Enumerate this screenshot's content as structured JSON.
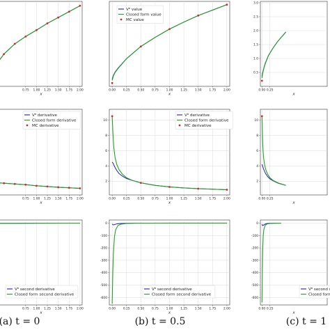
{
  "colors": {
    "nn": "#1f1fb4",
    "closed": "#22a022",
    "mc": "#d62728",
    "grid": "#d9d9d9"
  },
  "captions": [
    {
      "column": 0,
      "text": "(a) t = 0"
    },
    {
      "column": 1,
      "text": "(b) t = 0.5"
    },
    {
      "column": 2,
      "text": "(c) t = 1"
    }
  ],
  "chart_data": [
    {
      "id": "a-value",
      "type": "line",
      "column": 0,
      "row": 0,
      "xlim": [
        0.0,
        2.05
      ],
      "ylim": [
        0.8,
        3.7
      ],
      "xticks": [
        "0.75",
        "1.00",
        "1.25",
        "1.50",
        "1.75",
        "2.00"
      ],
      "yticks": [],
      "xlabel": "x",
      "x": [
        0.0,
        0.25,
        0.5,
        0.75,
        1.0,
        1.25,
        1.5,
        1.75,
        2.0
      ],
      "series": [
        {
          "kind": "nn",
          "values": [
            1.4,
            1.9,
            2.25,
            2.5,
            2.72,
            2.95,
            3.15,
            3.35,
            3.55
          ]
        },
        {
          "kind": "closed",
          "values": [
            1.4,
            1.9,
            2.25,
            2.5,
            2.72,
            2.95,
            3.15,
            3.35,
            3.55
          ]
        },
        {
          "kind": "mc",
          "values": [
            1.4,
            1.9,
            2.25,
            2.5,
            2.72,
            2.95,
            3.15,
            3.35,
            3.55
          ]
        }
      ],
      "legend": []
    },
    {
      "id": "b-value",
      "type": "line",
      "column": 1,
      "row": 0,
      "xlim": [
        -0.05,
        2.05
      ],
      "ylim": [
        -0.05,
        3.85
      ],
      "xticks": [
        "0.00",
        "0.25",
        "0.50",
        "0.75",
        "1.00",
        "1.25",
        "1.50",
        "1.75",
        "2.00"
      ],
      "yticks": [],
      "xlabel": "x",
      "x": [
        0.0,
        0.02,
        0.05,
        0.1,
        0.25,
        0.5,
        0.75,
        1.0,
        1.25,
        1.5,
        1.75,
        2.0
      ],
      "series": [
        {
          "kind": "nn",
          "values": [
            0.28,
            0.45,
            0.6,
            0.78,
            1.22,
            1.78,
            2.2,
            2.58,
            2.9,
            3.2,
            3.45,
            3.7
          ]
        },
        {
          "kind": "closed",
          "values": [
            0.22,
            0.42,
            0.58,
            0.76,
            1.22,
            1.78,
            2.2,
            2.58,
            2.9,
            3.2,
            3.45,
            3.7
          ]
        },
        {
          "kind": "mc",
          "x": [
            0.0,
            0.5,
            1.0,
            1.5,
            2.0
          ],
          "values": [
            0.1,
            1.78,
            2.58,
            3.2,
            3.7
          ]
        }
      ],
      "legend": [
        {
          "kind": "nn",
          "text": "Vᶿ value"
        },
        {
          "kind": "closed",
          "text": "Closed form value"
        },
        {
          "kind": "mc",
          "text": "MC value"
        }
      ]
    },
    {
      "id": "c-value",
      "type": "line",
      "column": 2,
      "row": 0,
      "xlim": [
        -0.05,
        2.05
      ],
      "ylim": [
        0.0,
        3.05
      ],
      "xticks": [
        "0.00",
        "0.25"
      ],
      "yticks": [
        "0.5",
        "1.0",
        "1.5",
        "2.0",
        "2.5",
        "3.0"
      ],
      "xlabel": "x",
      "x": [
        0.0,
        0.02,
        0.05,
        0.1,
        0.2,
        0.35,
        0.5,
        0.75
      ],
      "series": [
        {
          "kind": "nn",
          "values": [
            0.35,
            0.48,
            0.62,
            0.82,
            1.1,
            1.38,
            1.62,
            1.95
          ]
        },
        {
          "kind": "closed",
          "values": [
            0.3,
            0.45,
            0.6,
            0.8,
            1.1,
            1.38,
            1.62,
            1.95
          ]
        },
        {
          "kind": "mc",
          "x": [
            0.0
          ],
          "values": [
            0.2
          ]
        }
      ],
      "legend": []
    },
    {
      "id": "a-derivative",
      "type": "line",
      "column": 0,
      "row": 1,
      "xlim": [
        0.0,
        2.05
      ],
      "ylim": [
        -0.2,
        11.5
      ],
      "xticks": [
        "0.75",
        "1.00",
        "1.25",
        "1.50",
        "1.75",
        "2.00"
      ],
      "yticks": [],
      "xlabel": "x",
      "x": [
        0.0,
        0.25,
        0.5,
        0.75,
        1.0,
        1.25,
        1.5,
        1.75,
        2.0
      ],
      "series": [
        {
          "kind": "nn",
          "values": [
            1.5,
            1.4,
            1.3,
            1.2,
            1.05,
            0.95,
            0.85,
            0.78,
            0.7
          ]
        },
        {
          "kind": "closed",
          "values": [
            1.5,
            1.4,
            1.3,
            1.2,
            1.05,
            0.95,
            0.85,
            0.78,
            0.7
          ]
        },
        {
          "kind": "mc",
          "values": [
            1.5,
            1.4,
            1.3,
            1.2,
            1.05,
            0.95,
            0.85,
            0.78,
            0.7
          ]
        }
      ],
      "legend": [
        {
          "kind": "nn",
          "text": "Vᶿ derivative"
        },
        {
          "kind": "closed",
          "text": "Closed form derivative"
        },
        {
          "kind": "mc",
          "text": "MC derivative"
        }
      ]
    },
    {
      "id": "b-derivative",
      "type": "line",
      "column": 1,
      "row": 1,
      "xlim": [
        -0.05,
        2.05
      ],
      "ylim": [
        0.2,
        11.4
      ],
      "xticks": [
        "0.00",
        "0.25",
        "0.50",
        "0.75",
        "1.00",
        "1.25",
        "1.50",
        "1.75",
        "2.00"
      ],
      "yticks": [
        "2",
        "4",
        "6",
        "8",
        "10"
      ],
      "xlabel": "x",
      "x": [
        0.0,
        0.01,
        0.02,
        0.03,
        0.05,
        0.08,
        0.12,
        0.18,
        0.25,
        0.35,
        0.5,
        0.75,
        1.0,
        1.25,
        1.5,
        1.75,
        2.0
      ],
      "series": [
        {
          "kind": "nn",
          "values": [
            4.5,
            4.4,
            4.3,
            4.1,
            3.8,
            3.4,
            3.0,
            2.65,
            2.35,
            2.1,
            1.78,
            1.45,
            1.25,
            1.12,
            1.02,
            0.95,
            0.88
          ]
        },
        {
          "kind": "closed",
          "values": [
            10.5,
            8.8,
            7.3,
            6.3,
            5.1,
            4.2,
            3.5,
            2.9,
            2.45,
            2.1,
            1.78,
            1.45,
            1.25,
            1.12,
            1.02,
            0.95,
            0.88
          ]
        },
        {
          "kind": "mc",
          "x": [
            0.0,
            0.5,
            1.0,
            1.5,
            2.0
          ],
          "values": [
            10.5,
            1.78,
            1.25,
            1.02,
            0.88
          ]
        }
      ],
      "legend": [
        {
          "kind": "nn",
          "text": "Vᶿ derivative"
        },
        {
          "kind": "closed",
          "text": "Closed form derivative"
        },
        {
          "kind": "mc",
          "text": "MC derivative"
        }
      ]
    },
    {
      "id": "c-derivative",
      "type": "line",
      "column": 2,
      "row": 1,
      "xlim": [
        -0.05,
        2.05
      ],
      "ylim": [
        0.2,
        11.4
      ],
      "xticks": [
        "0.00",
        "0.25"
      ],
      "yticks": [
        "2",
        "4",
        "6",
        "8",
        "10"
      ],
      "xlabel": "x",
      "x": [
        0.0,
        0.01,
        0.02,
        0.03,
        0.05,
        0.08,
        0.12,
        0.18,
        0.25,
        0.35,
        0.5,
        0.75
      ],
      "series": [
        {
          "kind": "nn",
          "values": [
            4.2,
            4.1,
            4.0,
            3.85,
            3.6,
            3.3,
            2.95,
            2.6,
            2.3,
            2.05,
            1.75,
            1.45
          ]
        },
        {
          "kind": "closed",
          "values": [
            10.5,
            8.8,
            7.3,
            6.3,
            5.1,
            4.2,
            3.5,
            2.9,
            2.45,
            2.1,
            1.78,
            1.45
          ]
        },
        {
          "kind": "mc",
          "x": [
            0.0
          ],
          "values": [
            10.5
          ]
        }
      ],
      "legend": []
    },
    {
      "id": "a-second",
      "type": "line",
      "column": 0,
      "row": 2,
      "xlim": [
        0.0,
        2.05
      ],
      "ylim": [
        -660,
        25
      ],
      "xticks": [
        "0.75",
        "1.00",
        "1.25",
        "1.50",
        "1.75",
        "2.00"
      ],
      "yticks": [],
      "xlabel": "x",
      "x": [
        0.0,
        0.5,
        1.0,
        1.5,
        2.0
      ],
      "series": [
        {
          "kind": "nn",
          "values": [
            -2,
            -1.5,
            -1,
            -0.5,
            -0.3
          ]
        },
        {
          "kind": "closed",
          "values": [
            -2,
            -1.5,
            -1,
            -0.5,
            -0.3
          ]
        }
      ],
      "legend": [
        {
          "kind": "nn",
          "text": "Vᶿ second derivative"
        },
        {
          "kind": "closed",
          "text": "Closed form second derivative"
        }
      ]
    },
    {
      "id": "b-second",
      "type": "line",
      "column": 1,
      "row": 2,
      "xlim": [
        -0.05,
        2.05
      ],
      "ylim": [
        -660,
        25
      ],
      "xticks": [
        "0.00",
        "0.25",
        "0.50",
        "0.75",
        "1.00",
        "1.25",
        "1.50",
        "1.75",
        "2.00"
      ],
      "yticks": [
        "0",
        "-100",
        "-200",
        "-300",
        "-400",
        "-500",
        "-600"
      ],
      "xlabel": "x",
      "x": [
        0.0,
        0.01,
        0.02,
        0.04,
        0.06,
        0.1,
        0.15,
        0.25,
        0.4,
        0.6,
        1.0,
        1.5,
        2.0
      ],
      "series": [
        {
          "kind": "nn",
          "values": [
            -8,
            -12,
            -14,
            -12,
            -9,
            -5,
            -3,
            -1.5,
            -0.5,
            -0.2,
            -0.1,
            -0.05,
            0
          ]
        },
        {
          "kind": "closed",
          "values": [
            -650,
            -420,
            -250,
            -110,
            -55,
            -20,
            -9,
            -3,
            -1,
            -0.4,
            -0.1,
            -0.05,
            0
          ]
        }
      ],
      "legend": [
        {
          "kind": "nn",
          "text": "Vᶿ second derivative"
        },
        {
          "kind": "closed",
          "text": "Closed form second derivative"
        }
      ]
    },
    {
      "id": "c-second",
      "type": "line",
      "column": 2,
      "row": 2,
      "xlim": [
        -0.05,
        2.05
      ],
      "ylim": [
        -660,
        25
      ],
      "xticks": [
        "0.00",
        "0.25"
      ],
      "yticks": [
        "0",
        "-100",
        "-200",
        "-300",
        "-400",
        "-500",
        "-600"
      ],
      "xlabel": "x",
      "x": [
        0.0,
        0.01,
        0.02,
        0.04,
        0.06,
        0.1,
        0.15,
        0.25,
        0.4,
        0.6
      ],
      "series": [
        {
          "kind": "nn",
          "values": [
            -10,
            -16,
            -20,
            -18,
            -14,
            -8,
            -4,
            -2,
            -0.8,
            -0.3
          ]
        },
        {
          "kind": "closed",
          "values": [
            -640,
            -400,
            -230,
            -100,
            -50,
            -18,
            -8,
            -3,
            -1,
            -0.4
          ]
        }
      ],
      "legend": [
        {
          "kind": "nn",
          "text": "Vᶿ second derivative"
        },
        {
          "kind": "closed",
          "text": "Closed form second derivative"
        }
      ]
    }
  ]
}
